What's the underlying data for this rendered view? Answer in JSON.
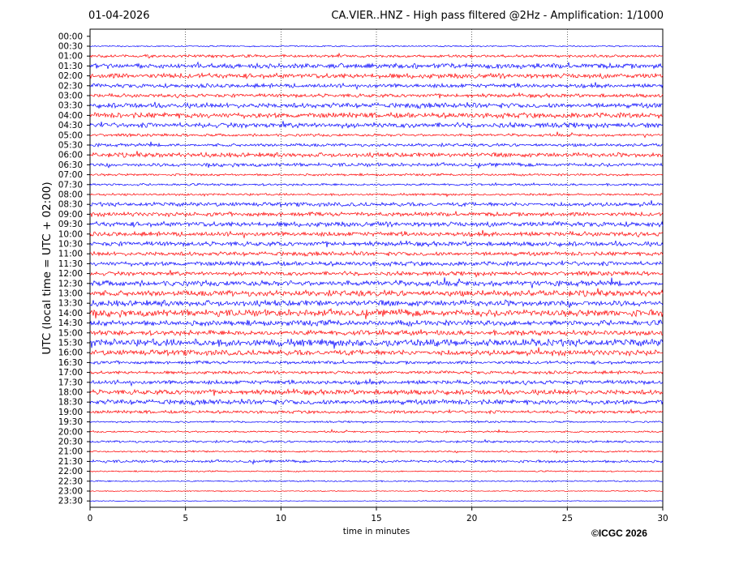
{
  "header": {
    "date": "01-04-2026",
    "title": "CA.VIER..HNZ - High pass filtered @2Hz - Amplification: 1/1000"
  },
  "footer": {
    "copyright": "©ICGC 2026"
  },
  "colors": {
    "trace_blue": "#0000ff",
    "trace_red": "#ff0000",
    "grid": "#000000"
  },
  "chart_data": {
    "type": "line",
    "title": "CA.VIER..HNZ - High pass filtered @2Hz - Amplification: 1/1000",
    "xlabel": "time in minutes",
    "ylabel": "UTC (local time = UTC + 02:00)",
    "xlim": [
      0,
      30
    ],
    "x_ticks": [
      "0",
      "5",
      "10",
      "15",
      "20",
      "25",
      "30"
    ],
    "grid": true,
    "grid_style": "dotted vertical",
    "series_colors_alternate": [
      "blue",
      "red"
    ],
    "rows": [
      {
        "label": "00:00",
        "color": "blue",
        "amp": 0.0
      },
      {
        "label": "00:30",
        "color": "blue",
        "amp": 0.15
      },
      {
        "label": "01:00",
        "color": "red",
        "amp": 0.3
      },
      {
        "label": "01:30",
        "color": "blue",
        "amp": 0.55
      },
      {
        "label": "02:00",
        "color": "red",
        "amp": 0.55
      },
      {
        "label": "02:30",
        "color": "blue",
        "amp": 0.45
      },
      {
        "label": "03:00",
        "color": "red",
        "amp": 0.4
      },
      {
        "label": "03:30",
        "color": "blue",
        "amp": 0.55
      },
      {
        "label": "04:00",
        "color": "red",
        "amp": 0.6
      },
      {
        "label": "04:30",
        "color": "blue",
        "amp": 0.55
      },
      {
        "label": "05:00",
        "color": "red",
        "amp": 0.3
      },
      {
        "label": "05:30",
        "color": "blue",
        "amp": 0.35
      },
      {
        "label": "06:00",
        "color": "red",
        "amp": 0.5
      },
      {
        "label": "06:30",
        "color": "blue",
        "amp": 0.4
      },
      {
        "label": "07:00",
        "color": "red",
        "amp": 0.25
      },
      {
        "label": "07:30",
        "color": "blue",
        "amp": 0.25
      },
      {
        "label": "08:00",
        "color": "red",
        "amp": 0.25
      },
      {
        "label": "08:30",
        "color": "blue",
        "amp": 0.45
      },
      {
        "label": "09:00",
        "color": "red",
        "amp": 0.45
      },
      {
        "label": "09:30",
        "color": "blue",
        "amp": 0.55
      },
      {
        "label": "10:00",
        "color": "red",
        "amp": 0.5
      },
      {
        "label": "10:30",
        "color": "blue",
        "amp": 0.5
      },
      {
        "label": "11:00",
        "color": "red",
        "amp": 0.45
      },
      {
        "label": "11:30",
        "color": "blue",
        "amp": 0.5
      },
      {
        "label": "12:00",
        "color": "red",
        "amp": 0.45
      },
      {
        "label": "12:30",
        "color": "blue",
        "amp": 0.6
      },
      {
        "label": "13:00",
        "color": "red",
        "amp": 0.65
      },
      {
        "label": "13:30",
        "color": "blue",
        "amp": 0.65
      },
      {
        "label": "14:00",
        "color": "red",
        "amp": 0.75
      },
      {
        "label": "14:30",
        "color": "blue",
        "amp": 0.6
      },
      {
        "label": "15:00",
        "color": "red",
        "amp": 0.55
      },
      {
        "label": "15:30",
        "color": "blue",
        "amp": 0.8
      },
      {
        "label": "16:00",
        "color": "red",
        "amp": 0.6
      },
      {
        "label": "16:30",
        "color": "blue",
        "amp": 0.35
      },
      {
        "label": "17:00",
        "color": "red",
        "amp": 0.35
      },
      {
        "label": "17:30",
        "color": "blue",
        "amp": 0.45
      },
      {
        "label": "18:00",
        "color": "red",
        "amp": 0.55
      },
      {
        "label": "18:30",
        "color": "blue",
        "amp": 0.55
      },
      {
        "label": "19:00",
        "color": "red",
        "amp": 0.35
      },
      {
        "label": "19:30",
        "color": "blue",
        "amp": 0.2
      },
      {
        "label": "20:00",
        "color": "red",
        "amp": 0.2
      },
      {
        "label": "20:30",
        "color": "blue",
        "amp": 0.25
      },
      {
        "label": "21:00",
        "color": "red",
        "amp": 0.2
      },
      {
        "label": "21:30",
        "color": "blue",
        "amp": 0.3
      },
      {
        "label": "22:00",
        "color": "red",
        "amp": 0.15
      },
      {
        "label": "22:30",
        "color": "blue",
        "amp": 0.15
      },
      {
        "label": "23:00",
        "color": "red",
        "amp": 0.1
      },
      {
        "label": "23:30",
        "color": "blue",
        "amp": 0.08
      }
    ]
  }
}
